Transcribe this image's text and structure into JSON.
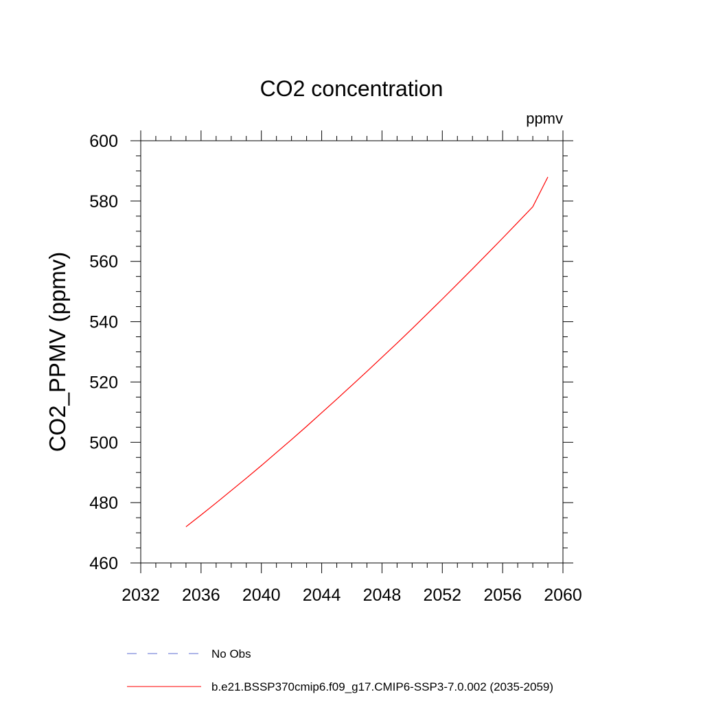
{
  "chart_data": {
    "type": "line",
    "title": "CO2 concentration",
    "units_label": "ppmv",
    "xlabel": "",
    "ylabel": "CO2_PPMV  (ppmv)",
    "xlim": [
      2032,
      2060
    ],
    "ylim": [
      460,
      600
    ],
    "xticks": [
      2032,
      2036,
      2040,
      2044,
      2048,
      2052,
      2056,
      2060
    ],
    "yticks": [
      460,
      480,
      500,
      520,
      540,
      560,
      580,
      600
    ],
    "grid": false,
    "legend_position": "bottom",
    "series": [
      {
        "name": "No Obs",
        "style": "dashed",
        "color": "#5b6bd0",
        "x": [],
        "y": []
      },
      {
        "name": "b.e21.BSSP370cmip6.f09_g17.CMIP6-SSP3-7.0.002 (2035-2059)",
        "style": "solid",
        "color": "#ff0000",
        "x": [
          2035,
          2036,
          2037,
          2038,
          2039,
          2040,
          2041,
          2042,
          2043,
          2044,
          2045,
          2046,
          2047,
          2048,
          2049,
          2050,
          2051,
          2052,
          2053,
          2054,
          2055,
          2056,
          2057,
          2058,
          2059
        ],
        "y": [
          472.0,
          475.9,
          479.9,
          484.0,
          488.1,
          492.3,
          496.6,
          500.9,
          505.3,
          509.8,
          514.3,
          518.9,
          523.5,
          528.2,
          532.9,
          537.7,
          542.6,
          547.5,
          552.5,
          557.5,
          562.6,
          567.7,
          572.9,
          578.1,
          588.0
        ]
      }
    ]
  }
}
